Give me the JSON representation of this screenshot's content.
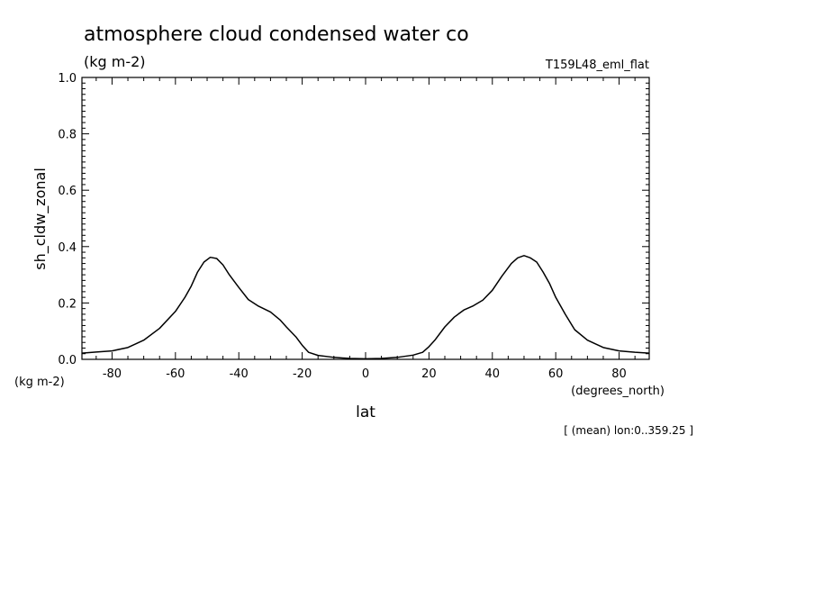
{
  "chart_data": {
    "type": "line",
    "title": "atmosphere cloud condensed water co",
    "units_label": "(kg m-2)",
    "run_label": "T159L48_eml_flat",
    "xlabel": "lat",
    "x_units": "(degrees_north)",
    "ylabel": "sh_cldw_zonal",
    "y_units": "(kg m-2)",
    "footnote": "[ (mean) lon:0..359.25 ]",
    "xlim": [
      -89.5,
      89.5
    ],
    "ylim": [
      0.0,
      1.0
    ],
    "x_ticks": [
      -80,
      -60,
      -40,
      -20,
      0,
      20,
      40,
      60,
      80
    ],
    "x_tick_labels": [
      "-80",
      "-60",
      "-40",
      "-20",
      "0",
      "20",
      "40",
      "60",
      "80"
    ],
    "y_ticks": [
      0.0,
      0.2,
      0.4,
      0.6,
      0.8,
      1.0
    ],
    "y_tick_labels": [
      "0.0",
      "0.2",
      "0.4",
      "0.6",
      "0.8",
      "1.0"
    ],
    "grid": false,
    "line_color": "#000000",
    "series": [
      {
        "x": [
          -89.5,
          -85,
          -80,
          -75,
          -70,
          -65,
          -60,
          -57,
          -55,
          -53,
          -51,
          -49,
          -47,
          -45,
          -43,
          -40,
          -37,
          -34,
          -30,
          -27,
          -25,
          -22,
          -20,
          -18,
          -15,
          -10,
          -5,
          0,
          5,
          10,
          15,
          18,
          20,
          22,
          25,
          28,
          31,
          34,
          37,
          40,
          43,
          46,
          48,
          50,
          52,
          54,
          56,
          58,
          60,
          63,
          66,
          70,
          75,
          80,
          85,
          89.5
        ],
        "y": [
          0.022,
          0.026,
          0.03,
          0.042,
          0.068,
          0.11,
          0.17,
          0.22,
          0.26,
          0.31,
          0.345,
          0.362,
          0.358,
          0.335,
          0.3,
          0.255,
          0.212,
          0.19,
          0.168,
          0.14,
          0.115,
          0.08,
          0.05,
          0.025,
          0.014,
          0.007,
          0.003,
          0.002,
          0.003,
          0.007,
          0.015,
          0.025,
          0.045,
          0.07,
          0.115,
          0.15,
          0.175,
          0.19,
          0.21,
          0.245,
          0.295,
          0.34,
          0.36,
          0.368,
          0.36,
          0.345,
          0.31,
          0.27,
          0.22,
          0.16,
          0.105,
          0.068,
          0.042,
          0.03,
          0.025,
          0.022
        ]
      }
    ]
  }
}
